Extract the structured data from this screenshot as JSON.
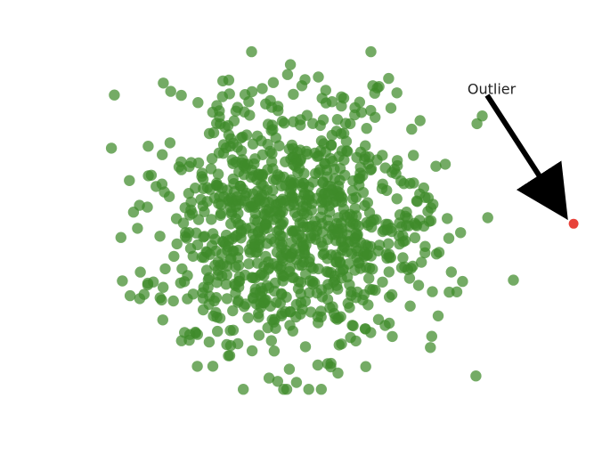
{
  "chart_data": {
    "type": "scatter",
    "title": "",
    "xlabel": "",
    "ylabel": "",
    "grid": false,
    "axes_visible": false,
    "xlim": [
      -3.6,
      4.2
    ],
    "ylim": [
      -3.0,
      3.2
    ],
    "colors": {
      "main_points": "#3f8a2a",
      "outlier_point": "#e8423a",
      "arrow": "#000000"
    },
    "series": [
      {
        "values": [],
        "generator": {
          "distribution": "gaussian",
          "count": 950,
          "center": [
            0,
            0
          ],
          "std": 1.0,
          "seed": 42
        }
      },
      {
        "points": [
          [
            4,
            0
          ]
        ]
      }
    ],
    "annotations": [
      {
        "text": "Outlier",
        "target": [
          4,
          0
        ],
        "text_position": [
          2.5,
          2.0
        ]
      }
    ]
  }
}
